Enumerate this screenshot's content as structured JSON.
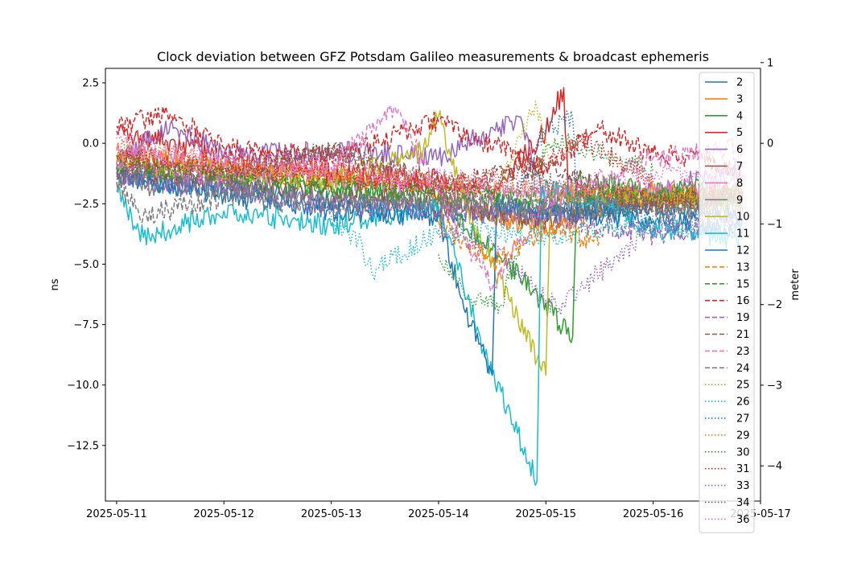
{
  "chart_data": {
    "type": "line",
    "title": "Clock deviation between GFZ Potsdam Galileo measurements & broadcast ephemeris",
    "xlabel": "",
    "ylabel": "ns",
    "y2label": "meter",
    "xlim": [
      "2025-05-10T21:30",
      "2025-05-17T00:00"
    ],
    "ylim": [
      -14.8,
      3.1
    ],
    "y2lim": [
      -4.437,
      0.929
    ],
    "x_ticks": [
      "2025-05-11",
      "2025-05-12",
      "2025-05-13",
      "2025-05-14",
      "2025-05-15",
      "2025-05-16",
      "2025-05-17"
    ],
    "y_ticks": [
      2.5,
      0.0,
      -2.5,
      -5.0,
      -7.5,
      -10.0,
      -12.5
    ],
    "y_tick_labels": [
      "2.5",
      "0.0",
      "−2.5",
      "−5.0",
      "−7.5",
      "−10.0",
      "−12.5"
    ],
    "y2_ticks": [
      1,
      0,
      -1,
      -2,
      -3,
      -4
    ],
    "y2_tick_labels": [
      "1",
      "0",
      "−1",
      "−2",
      "−3",
      "−4"
    ],
    "grid": false,
    "legend_position": "top-right",
    "series": [
      {
        "name": "2",
        "color": "#1f77b4",
        "style": "solid",
        "x": [
          "2025-05-11T00:00",
          "2025-05-12T00:00",
          "2025-05-13T00:00",
          "2025-05-14T00:00",
          "2025-05-15T00:00",
          "2025-05-16T00:00",
          "2025-05-16T20:00"
        ],
        "y": [
          -1.5,
          -1.8,
          -2.4,
          -2.8,
          -3.0,
          -2.6,
          -3.1
        ]
      },
      {
        "name": "3",
        "color": "#ff7f0e",
        "style": "solid",
        "x": [
          "2025-05-11T00:00",
          "2025-05-12T00:00",
          "2025-05-13T00:00",
          "2025-05-14T00:00",
          "2025-05-14T12:00",
          "2025-05-15T00:00",
          "2025-05-16T00:00",
          "2025-05-16T20:00"
        ],
        "y": [
          -0.5,
          -1.0,
          -1.5,
          -2.0,
          -3.0,
          -3.5,
          -2.0,
          -2.4
        ]
      },
      {
        "name": "4",
        "color": "#2ca02c",
        "style": "solid",
        "x": [
          "2025-05-11T00:00",
          "2025-05-12T00:00",
          "2025-05-13T00:00",
          "2025-05-14T00:00",
          "2025-05-14T18:00",
          "2025-05-15T06:00",
          "2025-05-15T07:00",
          "2025-05-16T00:00",
          "2025-05-16T20:00"
        ],
        "y": [
          -1.0,
          -1.4,
          -1.8,
          -2.2,
          -5.5,
          -8.0,
          -1.5,
          -2.0,
          -2.3
        ]
      },
      {
        "name": "5",
        "color": "#d62728",
        "style": "solid",
        "x": [
          "2025-05-11T00:00",
          "2025-05-12T00:00",
          "2025-05-13T00:00",
          "2025-05-14T00:00",
          "2025-05-14T12:00",
          "2025-05-15T00:00",
          "2025-05-15T04:00",
          "2025-05-15T05:00",
          "2025-05-16T00:00",
          "2025-05-16T20:00"
        ],
        "y": [
          0.5,
          -0.5,
          -1.2,
          -1.5,
          -2.0,
          0.5,
          2.3,
          -2.0,
          -2.4,
          -2.0
        ]
      },
      {
        "name": "6",
        "color": "#9467bd",
        "style": "solid",
        "x": [
          "2025-05-11T00:00",
          "2025-05-11T12:00",
          "2025-05-12T00:00",
          "2025-05-13T00:00",
          "2025-05-14T00:00",
          "2025-05-14T18:00",
          "2025-05-15T00:00",
          "2025-05-16T00:00",
          "2025-05-16T20:00"
        ],
        "y": [
          -0.8,
          0.8,
          -0.5,
          -0.3,
          -0.6,
          1.1,
          -2.5,
          -2.0,
          -1.0
        ]
      },
      {
        "name": "7",
        "color": "#8c564b",
        "style": "solid",
        "x": [
          "2025-05-11T00:00",
          "2025-05-12T00:00",
          "2025-05-13T00:00",
          "2025-05-14T00:00",
          "2025-05-15T00:00",
          "2025-05-16T00:00",
          "2025-05-16T20:00"
        ],
        "y": [
          -1.2,
          -1.6,
          -2.0,
          -2.6,
          -3.2,
          -2.4,
          -2.2
        ]
      },
      {
        "name": "8",
        "color": "#e377c2",
        "style": "solid",
        "x": [
          "2025-05-11T00:00",
          "2025-05-12T00:00",
          "2025-05-13T00:00",
          "2025-05-14T00:00",
          "2025-05-15T00:00",
          "2025-05-16T00:00",
          "2025-05-16T20:00"
        ],
        "y": [
          -0.3,
          -1.0,
          -1.4,
          -1.8,
          -2.2,
          -2.0,
          -1.6
        ]
      },
      {
        "name": "9",
        "color": "#7f7f7f",
        "style": "solid",
        "x": [
          "2025-05-11T00:00",
          "2025-05-12T00:00",
          "2025-05-13T00:00",
          "2025-05-14T00:00",
          "2025-05-15T00:00",
          "2025-05-16T00:00",
          "2025-05-16T20:00"
        ],
        "y": [
          -1.6,
          -2.0,
          -2.2,
          -2.4,
          -2.8,
          -2.6,
          -2.8
        ]
      },
      {
        "name": "10",
        "color": "#bcbd22",
        "style": "solid",
        "x": [
          "2025-05-11T00:00",
          "2025-05-12T00:00",
          "2025-05-13T00:00",
          "2025-05-13T20:00",
          "2025-05-14T00:00",
          "2025-05-14T08:00",
          "2025-05-15T00:00",
          "2025-05-15T01:00",
          "2025-05-16T00:00",
          "2025-05-16T20:00"
        ],
        "y": [
          -0.8,
          -1.2,
          -1.6,
          -0.3,
          1.1,
          -3.5,
          -9.6,
          -2.0,
          -2.2,
          -2.4
        ]
      },
      {
        "name": "11",
        "color": "#17becf",
        "style": "solid",
        "x": [
          "2025-05-11T00:00",
          "2025-05-11T06:00",
          "2025-05-12T00:00",
          "2025-05-13T00:00",
          "2025-05-14T00:00",
          "2025-05-14T10:00",
          "2025-05-14T22:00",
          "2025-05-14T23:00",
          "2025-05-15T12:00",
          "2025-05-16T00:00",
          "2025-05-16T20:00"
        ],
        "y": [
          -2.0,
          -3.9,
          -2.8,
          -3.4,
          -2.6,
          -8.5,
          -14.0,
          -1.8,
          -2.5,
          -3.5,
          -4.0
        ]
      },
      {
        "name": "12",
        "color": "#1f77b4",
        "style": "solid",
        "x": [
          "2025-05-11T00:00",
          "2025-05-12T00:00",
          "2025-05-13T00:00",
          "2025-05-14T00:00",
          "2025-05-14T06:00",
          "2025-05-14T12:00",
          "2025-05-14T13:00",
          "2025-05-15T00:00",
          "2025-05-16T00:00",
          "2025-05-16T20:00"
        ],
        "y": [
          -1.2,
          -2.2,
          -2.8,
          -3.0,
          -7.0,
          -9.6,
          -2.5,
          -2.8,
          -3.2,
          -3.5
        ]
      },
      {
        "name": "13",
        "color": "#ff7f0e",
        "style": "dashed",
        "x": [
          "2025-05-14T00:00",
          "2025-05-14T12:00",
          "2025-05-15T00:00",
          "2025-05-15T12:00"
        ],
        "y": [
          -3.2,
          -5.0,
          -3.6,
          -4.0
        ]
      },
      {
        "name": "15",
        "color": "#2ca02c",
        "style": "dashed",
        "x": [
          "2025-05-11T00:00",
          "2025-05-12T00:00",
          "2025-05-13T00:00",
          "2025-05-14T00:00",
          "2025-05-15T00:00",
          "2025-05-16T00:00",
          "2025-05-16T20:00"
        ],
        "y": [
          -1.0,
          -1.3,
          -1.8,
          -2.0,
          -2.4,
          -2.0,
          -1.8
        ]
      },
      {
        "name": "16",
        "color": "#d62728",
        "style": "dashed",
        "x": [
          "2025-05-11T00:00",
          "2025-05-11T12:00",
          "2025-05-12T00:00",
          "2025-05-13T00:00",
          "2025-05-14T00:00",
          "2025-05-15T00:00",
          "2025-05-15T12:00",
          "2025-05-16T00:00",
          "2025-05-16T20:00"
        ],
        "y": [
          0.7,
          1.2,
          -0.2,
          -0.6,
          0.9,
          -1.0,
          0.6,
          -0.4,
          -1.0
        ]
      },
      {
        "name": "19",
        "color": "#9467bd",
        "style": "dashed",
        "x": [
          "2025-05-11T00:00",
          "2025-05-12T00:00",
          "2025-05-13T00:00",
          "2025-05-14T00:00",
          "2025-05-15T00:00",
          "2025-05-16T00:00",
          "2025-05-16T20:00"
        ],
        "y": [
          -1.4,
          -1.8,
          -2.6,
          -2.8,
          -3.0,
          -3.8,
          -3.2
        ]
      },
      {
        "name": "21",
        "color": "#8c564b",
        "style": "dashed",
        "x": [
          "2025-05-11T00:00",
          "2025-05-12T00:00",
          "2025-05-13T00:00",
          "2025-05-14T00:00",
          "2025-05-15T00:00",
          "2025-05-16T00:00",
          "2025-05-16T20:00"
        ],
        "y": [
          -0.6,
          -1.2,
          -0.4,
          -1.6,
          -1.0,
          -2.4,
          -2.0
        ]
      },
      {
        "name": "23",
        "color": "#e377c2",
        "style": "dashed",
        "x": [
          "2025-05-11T00:00",
          "2025-05-12T00:00",
          "2025-05-13T00:00",
          "2025-05-13T14:00",
          "2025-05-14T00:00",
          "2025-05-14T12:00",
          "2025-05-15T00:00",
          "2025-05-16T00:00",
          "2025-05-16T20:00"
        ],
        "y": [
          -0.8,
          -1.4,
          -1.0,
          1.5,
          -2.0,
          -6.0,
          -2.4,
          -0.6,
          -0.2
        ]
      },
      {
        "name": "24",
        "color": "#7f7f7f",
        "style": "dashed",
        "x": [
          "2025-05-11T00:00",
          "2025-05-11T06:00",
          "2025-05-12T00:00",
          "2025-05-13T00:00",
          "2025-05-14T00:00",
          "2025-05-15T00:00",
          "2025-05-16T00:00",
          "2025-05-16T20:00"
        ],
        "y": [
          -1.6,
          -3.0,
          -2.2,
          -2.6,
          -2.4,
          -2.6,
          -2.8,
          -2.4
        ]
      },
      {
        "name": "25",
        "color": "#bcbd22",
        "style": "dotted",
        "x": [
          "2025-05-14T12:00",
          "2025-05-14T18:00",
          "2025-05-14T22:00",
          "2025-05-15T01:00"
        ],
        "y": [
          -2.5,
          0.3,
          1.5,
          -1.0
        ]
      },
      {
        "name": "26",
        "color": "#17becf",
        "style": "dotted",
        "x": [
          "2025-05-13T00:00",
          "2025-05-13T06:00",
          "2025-05-13T09:00",
          "2025-05-14T00:00",
          "2025-05-15T00:00",
          "2025-05-16T00:00",
          "2025-05-16T20:00"
        ],
        "y": [
          -3.0,
          -4.0,
          -5.3,
          -3.6,
          -3.8,
          -3.4,
          -3.6
        ]
      },
      {
        "name": "27",
        "color": "#1f77b4",
        "style": "dotted",
        "x": [
          "2025-05-14T16:00",
          "2025-05-15T00:00",
          "2025-05-15T06:00",
          "2025-05-15T07:00",
          "2025-05-16T00:00"
        ],
        "y": [
          -2.6,
          0.6,
          1.0,
          -2.5,
          -3.0
        ]
      },
      {
        "name": "29",
        "color": "#ff7f0e",
        "style": "dotted",
        "x": [
          "2025-05-11T00:00",
          "2025-05-12T00:00",
          "2025-05-13T00:00",
          "2025-05-14T00:00",
          "2025-05-15T00:00",
          "2025-05-16T00:00",
          "2025-05-16T20:00"
        ],
        "y": [
          -0.2,
          -0.8,
          -1.2,
          -1.6,
          -2.0,
          -2.2,
          -2.0
        ]
      },
      {
        "name": "30",
        "color": "#2ca02c",
        "style": "dotted",
        "x": [
          "2025-05-14T00:00",
          "2025-05-14T08:00",
          "2025-05-14T14:00",
          "2025-05-15T00:00",
          "2025-05-15T06:00",
          "2025-05-16T00:00"
        ],
        "y": [
          -4.6,
          -6.5,
          -6.7,
          -0.1,
          0.0,
          -1.2
        ]
      },
      {
        "name": "31",
        "color": "#d62728",
        "style": "dotted",
        "x": [
          "2025-05-11T00:00",
          "2025-05-12T00:00",
          "2025-05-13T00:00",
          "2025-05-14T00:00",
          "2025-05-15T00:00",
          "2025-05-15T08:00",
          "2025-05-16T00:00"
        ],
        "y": [
          -0.5,
          -1.0,
          -1.4,
          -1.8,
          -0.8,
          0.2,
          -1.6
        ]
      },
      {
        "name": "33",
        "color": "#9467bd",
        "style": "dotted",
        "x": [
          "2025-05-14T00:00",
          "2025-05-14T12:00",
          "2025-05-15T00:00",
          "2025-05-15T03:00",
          "2025-05-16T00:00",
          "2025-05-16T20:00"
        ],
        "y": [
          -3.6,
          -4.2,
          -6.5,
          -6.8,
          -3.4,
          -3.0
        ]
      },
      {
        "name": "34",
        "color": "#8c564b",
        "style": "dotted",
        "x": [
          "2025-05-11T00:00",
          "2025-05-12T00:00",
          "2025-05-13T00:00",
          "2025-05-14T00:00",
          "2025-05-15T00:00",
          "2025-05-16T00:00",
          "2025-05-16T20:00"
        ],
        "y": [
          -1.0,
          -1.4,
          -0.2,
          -2.2,
          -1.6,
          -2.6,
          -2.2
        ]
      },
      {
        "name": "36",
        "color": "#e377c2",
        "style": "dotted",
        "x": [
          "2025-05-11T00:00",
          "2025-05-11T12:00",
          "2025-05-12T00:00",
          "2025-05-13T00:00",
          "2025-05-14T00:00",
          "2025-05-15T00:00",
          "2025-05-16T00:00",
          "2025-05-16T20:00"
        ],
        "y": [
          0.2,
          -0.3,
          -0.6,
          -1.0,
          -1.4,
          -1.8,
          -1.4,
          -1.2
        ]
      }
    ]
  }
}
